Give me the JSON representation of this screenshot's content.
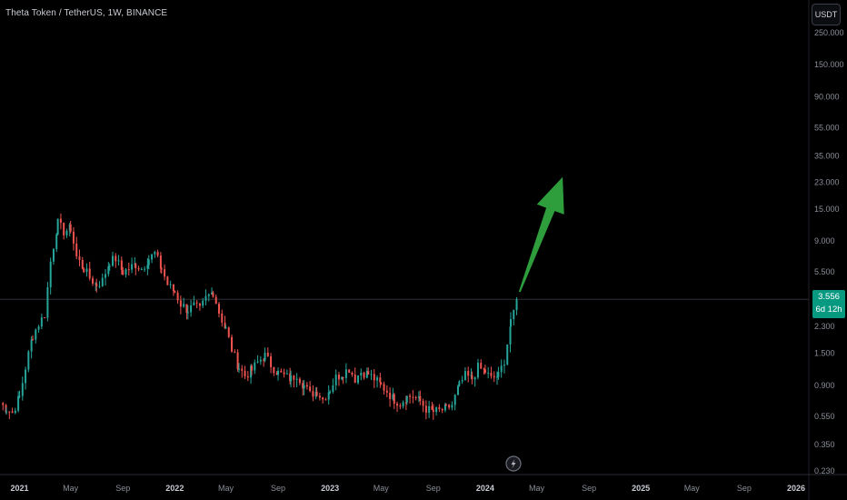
{
  "header": {
    "symbol_title": "Theta Token / TetherUS, 1W, BINANCE",
    "currency_button": "USDT"
  },
  "price_badge": {
    "last_price": "3.556",
    "countdown": "6d 12h"
  },
  "icons": {
    "event_marker": "lightning-icon",
    "projection": "arrow-up-right-icon"
  },
  "colors": {
    "background": "#000000",
    "up_candle": "#26a69a",
    "down_candle": "#ef5350",
    "projection_arrow": "#2e9e3c",
    "price_line": "#2e3138",
    "price_badge": "#089981"
  },
  "chart_data": {
    "type": "candlestick",
    "title": "Theta Token / TetherUS, 1W, BINANCE",
    "xlabel": "",
    "ylabel": "",
    "y_scale": "log",
    "ylim": [
      0.23,
      250
    ],
    "xlim": [
      "2020-11-16",
      "2026-01-31"
    ],
    "grid": false,
    "x_tick_labels": [
      {
        "date": "2021-01-01",
        "label": "2021",
        "bold": true
      },
      {
        "date": "2021-05-01",
        "label": "May"
      },
      {
        "date": "2021-09-01",
        "label": "Sep"
      },
      {
        "date": "2022-01-01",
        "label": "2022",
        "bold": true
      },
      {
        "date": "2022-05-01",
        "label": "May"
      },
      {
        "date": "2022-09-01",
        "label": "Sep"
      },
      {
        "date": "2023-01-01",
        "label": "2023",
        "bold": true
      },
      {
        "date": "2023-05-01",
        "label": "May"
      },
      {
        "date": "2023-09-01",
        "label": "Sep"
      },
      {
        "date": "2024-01-01",
        "label": "2024",
        "bold": true
      },
      {
        "date": "2024-05-01",
        "label": "May"
      },
      {
        "date": "2024-09-01",
        "label": "Sep"
      },
      {
        "date": "2025-01-01",
        "label": "2025",
        "bold": true
      },
      {
        "date": "2025-05-01",
        "label": "May"
      },
      {
        "date": "2025-09-01",
        "label": "Sep"
      },
      {
        "date": "2026-01-01",
        "label": "2026",
        "bold": true
      }
    ],
    "y_tick_labels": [
      {
        "value": 250,
        "label": "250.000"
      },
      {
        "value": 150,
        "label": "150.000"
      },
      {
        "value": 90,
        "label": "90.000"
      },
      {
        "value": 55,
        "label": "55.000"
      },
      {
        "value": 35,
        "label": "35.000"
      },
      {
        "value": 23,
        "label": "23.000"
      },
      {
        "value": 15,
        "label": "15.000"
      },
      {
        "value": 9,
        "label": "9.000"
      },
      {
        "value": 5.5,
        "label": "5.500"
      },
      {
        "value": 2.3,
        "label": "2.300"
      },
      {
        "value": 1.5,
        "label": "1.500"
      },
      {
        "value": 0.9,
        "label": "0.900"
      },
      {
        "value": 0.55,
        "label": "0.550"
      },
      {
        "value": 0.35,
        "label": "0.350"
      },
      {
        "value": 0.23,
        "label": "0.230"
      }
    ],
    "close_series": [
      [
        "2020-11-16",
        0.68
      ],
      [
        "2020-12-01",
        0.62
      ],
      [
        "2020-12-15",
        0.58
      ],
      [
        "2021-01-01",
        0.75
      ],
      [
        "2021-01-15",
        1.2
      ],
      [
        "2021-02-01",
        2.0
      ],
      [
        "2021-02-15",
        2.4
      ],
      [
        "2021-03-01",
        2.8
      ],
      [
        "2021-03-15",
        6.5
      ],
      [
        "2021-04-01",
        12.0
      ],
      [
        "2021-04-15",
        10.5
      ],
      [
        "2021-05-01",
        11.0
      ],
      [
        "2021-05-15",
        7.0
      ],
      [
        "2021-06-01",
        5.8
      ],
      [
        "2021-06-15",
        5.0
      ],
      [
        "2021-07-01",
        4.5
      ],
      [
        "2021-07-15",
        4.8
      ],
      [
        "2021-08-01",
        6.5
      ],
      [
        "2021-08-15",
        6.8
      ],
      [
        "2021-09-01",
        5.5
      ],
      [
        "2021-09-15",
        5.8
      ],
      [
        "2021-10-01",
        6.2
      ],
      [
        "2021-10-15",
        5.8
      ],
      [
        "2021-11-01",
        6.8
      ],
      [
        "2021-11-15",
        7.4
      ],
      [
        "2021-12-01",
        5.8
      ],
      [
        "2021-12-15",
        4.5
      ],
      [
        "2022-01-01",
        4.0
      ],
      [
        "2022-01-15",
        3.3
      ],
      [
        "2022-02-01",
        3.0
      ],
      [
        "2022-02-15",
        3.2
      ],
      [
        "2022-03-01",
        3.0
      ],
      [
        "2022-03-15",
        3.6
      ],
      [
        "2022-04-01",
        4.0
      ],
      [
        "2022-04-15",
        2.9
      ],
      [
        "2022-05-01",
        2.2
      ],
      [
        "2022-05-15",
        1.6
      ],
      [
        "2022-06-01",
        1.2
      ],
      [
        "2022-06-15",
        1.05
      ],
      [
        "2022-07-01",
        1.15
      ],
      [
        "2022-07-15",
        1.3
      ],
      [
        "2022-08-01",
        1.45
      ],
      [
        "2022-08-15",
        1.25
      ],
      [
        "2022-09-01",
        1.1
      ],
      [
        "2022-09-15",
        1.05
      ],
      [
        "2022-10-01",
        1.0
      ],
      [
        "2022-10-15",
        1.08
      ],
      [
        "2022-11-01",
        0.9
      ],
      [
        "2022-11-15",
        0.78
      ],
      [
        "2022-12-01",
        0.82
      ],
      [
        "2022-12-15",
        0.72
      ],
      [
        "2023-01-01",
        0.85
      ],
      [
        "2023-01-15",
        1.02
      ],
      [
        "2023-02-01",
        1.1
      ],
      [
        "2023-02-15",
        1.18
      ],
      [
        "2023-03-01",
        1.0
      ],
      [
        "2023-03-15",
        1.12
      ],
      [
        "2023-04-01",
        1.08
      ],
      [
        "2023-04-15",
        1.0
      ],
      [
        "2023-05-01",
        0.9
      ],
      [
        "2023-05-15",
        0.82
      ],
      [
        "2023-06-01",
        0.72
      ],
      [
        "2023-06-15",
        0.68
      ],
      [
        "2023-07-01",
        0.75
      ],
      [
        "2023-07-15",
        0.76
      ],
      [
        "2023-08-01",
        0.7
      ],
      [
        "2023-08-15",
        0.62
      ],
      [
        "2023-09-01",
        0.59
      ],
      [
        "2023-09-15",
        0.6
      ],
      [
        "2023-10-01",
        0.62
      ],
      [
        "2023-10-15",
        0.66
      ],
      [
        "2023-11-01",
        0.9
      ],
      [
        "2023-11-15",
        1.05
      ],
      [
        "2023-12-01",
        1.0
      ],
      [
        "2023-12-15",
        1.2
      ],
      [
        "2024-01-01",
        1.12
      ],
      [
        "2024-01-15",
        1.0
      ],
      [
        "2024-02-01",
        1.05
      ],
      [
        "2024-02-15",
        1.35
      ],
      [
        "2024-03-01",
        2.4
      ],
      [
        "2024-03-15",
        3.556
      ]
    ],
    "last_price": 3.556,
    "price_line_value": 3.556,
    "annotations": [
      {
        "type": "arrow",
        "direction": "up-right",
        "from_value": 4.0,
        "to_value": 25,
        "from_date": "2024-03-22",
        "to_date": "2024-07-01"
      },
      {
        "type": "event-marker",
        "date": "2024-03-01"
      }
    ]
  }
}
